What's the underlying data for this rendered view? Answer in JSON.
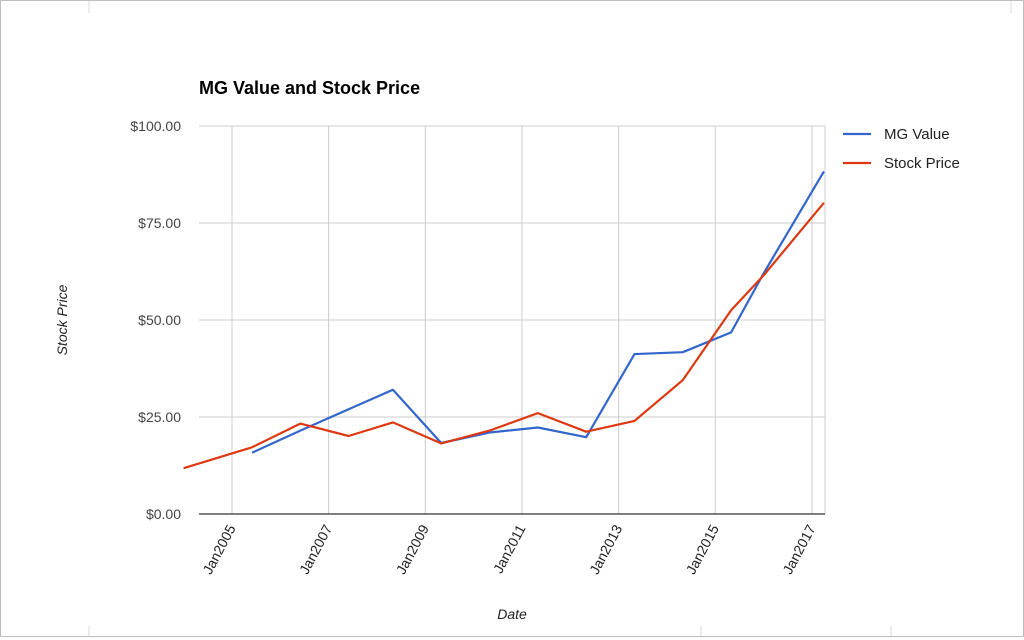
{
  "chart_data": {
    "type": "line",
    "title": "MG Value and Stock Price",
    "xlabel": "Date",
    "ylabel": "Stock Price",
    "xlim": [
      "2004-01-01",
      "2017-04-01"
    ],
    "ylim": [
      0,
      100
    ],
    "y_ticks": [
      "$0.00",
      "$25.00",
      "$50.00",
      "$75.00",
      "$100.00"
    ],
    "y_tick_values": [
      0,
      25,
      50,
      75,
      100
    ],
    "x_ticks": [
      "Jan2005",
      "Jan2007",
      "Jan2009",
      "Jan2011",
      "Jan2013",
      "Jan2015",
      "Jan2017"
    ],
    "x_tick_dates": [
      "2005-01-01",
      "2007-01-01",
      "2009-01-01",
      "2011-01-01",
      "2013-01-01",
      "2015-01-01",
      "2017-01-01"
    ],
    "grid": true,
    "legend_position": "right",
    "series": [
      {
        "name": "MG Value",
        "color": "#3366cc",
        "points": [
          [
            "2005-06-01",
            15.8
          ],
          [
            "2006-06-01",
            21.5
          ],
          [
            "2007-06-01",
            27.0
          ],
          [
            "2008-05-01",
            32.0
          ],
          [
            "2009-05-01",
            18.3
          ],
          [
            "2010-05-01",
            21.0
          ],
          [
            "2011-05-01",
            22.3
          ],
          [
            "2012-05-01",
            19.8
          ],
          [
            "2013-05-01",
            41.2
          ],
          [
            "2014-05-01",
            41.7
          ],
          [
            "2015-05-01",
            46.8
          ],
          [
            "2016-01-01",
            62.0
          ],
          [
            "2017-04-01",
            88.3
          ]
        ]
      },
      {
        "name": "Stock Price",
        "color": "#dc3912",
        "points": [
          [
            "2004-01-01",
            11.8
          ],
          [
            "2005-06-01",
            17.2
          ],
          [
            "2006-06-01",
            23.3
          ],
          [
            "2007-06-01",
            20.1
          ],
          [
            "2008-05-01",
            23.6
          ],
          [
            "2009-05-01",
            18.2
          ],
          [
            "2010-05-01",
            21.5
          ],
          [
            "2011-05-01",
            26.0
          ],
          [
            "2012-05-01",
            21.2
          ],
          [
            "2013-05-01",
            24.0
          ],
          [
            "2014-05-01",
            34.5
          ],
          [
            "2015-05-01",
            52.5
          ],
          [
            "2016-01-01",
            61.5
          ],
          [
            "2017-04-01",
            80.2
          ]
        ]
      }
    ]
  }
}
